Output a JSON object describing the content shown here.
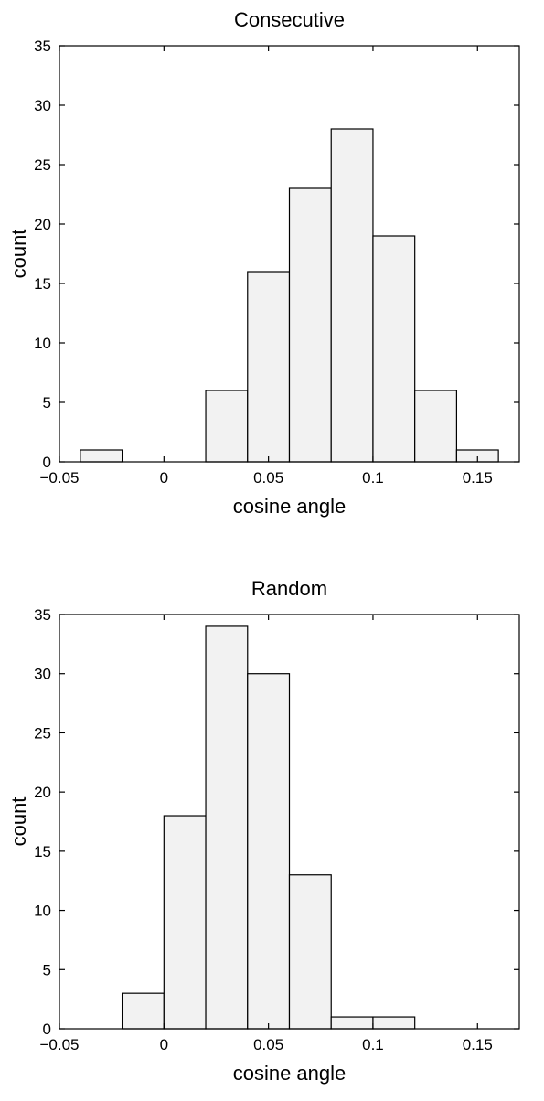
{
  "chart_data": [
    {
      "type": "bar",
      "title": "Consecutive",
      "xlabel": "cosine angle",
      "ylabel": "count",
      "xlim": [
        -0.05,
        0.17
      ],
      "ylim": [
        0,
        35
      ],
      "xticks": [
        -0.05,
        0,
        0.05,
        0.1,
        0.15
      ],
      "xtick_labels": [
        "−0.05",
        "0",
        "0.05",
        "0.1",
        "0.15"
      ],
      "yticks": [
        0,
        5,
        10,
        15,
        20,
        25,
        30,
        35
      ],
      "ytick_labels": [
        "0",
        "5",
        "10",
        "15",
        "20",
        "25",
        "30",
        "35"
      ],
      "bin_width": 0.02,
      "bin_starts": [
        -0.04,
        -0.02,
        0.0,
        0.02,
        0.04,
        0.06,
        0.08,
        0.1,
        0.12,
        0.14
      ],
      "values": [
        1,
        0,
        0,
        6,
        16,
        23,
        28,
        19,
        6,
        1
      ],
      "bar_fill": "#f2f2f2",
      "bar_stroke": "#000000"
    },
    {
      "type": "bar",
      "title": "Random",
      "xlabel": "cosine angle",
      "ylabel": "count",
      "xlim": [
        -0.05,
        0.17
      ],
      "ylim": [
        0,
        35
      ],
      "xticks": [
        -0.05,
        0,
        0.05,
        0.1,
        0.15
      ],
      "xtick_labels": [
        "−0.05",
        "0",
        "0.05",
        "0.1",
        "0.15"
      ],
      "yticks": [
        0,
        5,
        10,
        15,
        20,
        25,
        30,
        35
      ],
      "ytick_labels": [
        "0",
        "5",
        "10",
        "15",
        "20",
        "25",
        "30",
        "35"
      ],
      "bin_width": 0.02,
      "bin_starts": [
        -0.02,
        0.0,
        0.02,
        0.04,
        0.06,
        0.08,
        0.1
      ],
      "values": [
        3,
        18,
        34,
        30,
        13,
        1,
        1
      ],
      "bar_fill": "#f2f2f2",
      "bar_stroke": "#000000"
    }
  ]
}
